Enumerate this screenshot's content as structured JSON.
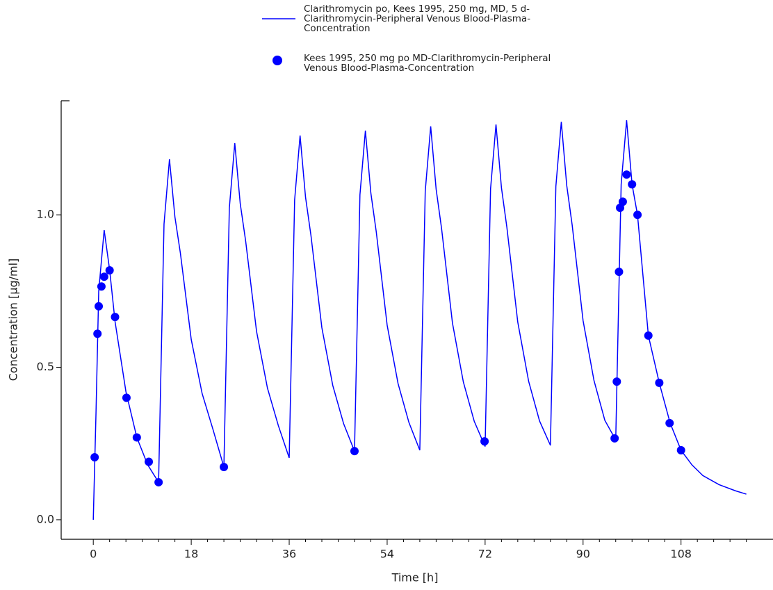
{
  "chart_data": {
    "type": "line",
    "xlabel": "Time [h]",
    "ylabel": "Concentration [µg/ml]",
    "xlim": [
      -5.9,
      124.9
    ],
    "ylim": [
      -0.064,
      1.374
    ],
    "xticks": [
      0,
      18,
      36,
      54,
      72,
      90,
      108
    ],
    "xminorticks": [
      3,
      6,
      9,
      12,
      15,
      21,
      24,
      27,
      30,
      33,
      39,
      42,
      45,
      48,
      51,
      57,
      60,
      63,
      66,
      69,
      75,
      78,
      81,
      84,
      87,
      93,
      96,
      99,
      102,
      105,
      111,
      114,
      117,
      120
    ],
    "yticks": [
      {
        "value": 0,
        "label": "0.0"
      },
      0.5,
      {
        "value": 1,
        "label": "1.0"
      }
    ],
    "series": [
      {
        "name": "Clarithromycin po, Kees 1995, 250 mg, MD, 5 d-Clarithromycin-Peripheral Venous Blood-Plasma-Concentration",
        "color": "#0000ff",
        "type": "line",
        "x": [
          0,
          0.5,
          1,
          2,
          3,
          4,
          6,
          8,
          10,
          12,
          12.5,
          13,
          14,
          15,
          16,
          18,
          20,
          22,
          24,
          24.5,
          25,
          26,
          27,
          28,
          30,
          32,
          34,
          36,
          36.5,
          37,
          38,
          39,
          40,
          42,
          44,
          46,
          48,
          48.5,
          49,
          50,
          51,
          52,
          54,
          56,
          58,
          60,
          60.5,
          61,
          62,
          63,
          64,
          66,
          68,
          70,
          72,
          72.5,
          73,
          74,
          75,
          76,
          78,
          80,
          82,
          84,
          84.5,
          85,
          86,
          87,
          88,
          90,
          92,
          94,
          96,
          96.5,
          97,
          98,
          99,
          100,
          102,
          104,
          106,
          108,
          110,
          112,
          115,
          118,
          120
        ],
        "values": [
          0,
          0.35,
          0.75,
          0.95,
          0.82,
          0.65,
          0.42,
          0.27,
          0.18,
          0.123,
          0.547,
          0.97,
          1.182,
          0.993,
          0.875,
          0.591,
          0.414,
          0.296,
          0.173,
          0.598,
          1.022,
          1.235,
          1.037,
          0.914,
          0.618,
          0.432,
          0.309,
          0.203,
          0.626,
          1.049,
          1.26,
          1.058,
          0.932,
          0.63,
          0.441,
          0.315,
          0.225,
          0.645,
          1.066,
          1.276,
          1.072,
          0.944,
          0.638,
          0.447,
          0.319,
          0.228,
          0.653,
          1.078,
          1.29,
          1.084,
          0.955,
          0.645,
          0.452,
          0.323,
          0.24,
          0.662,
          1.085,
          1.296,
          1.089,
          0.959,
          0.648,
          0.454,
          0.324,
          0.244,
          0.668,
          1.093,
          1.305,
          1.096,
          0.966,
          0.653,
          0.457,
          0.326,
          0.262,
          0.681,
          1.1,
          1.31,
          1.1,
          1.0,
          0.604,
          0.449,
          0.317,
          0.228,
          0.18,
          0.145,
          0.115,
          0.095,
          0.084
        ]
      },
      {
        "name": "Kees 1995, 250 mg po MD-Clarithromycin-Peripheral Venous Blood-Plasma-Concentration",
        "color": "#0000ff",
        "type": "scatter",
        "x": [
          0.25,
          0.77,
          1.0,
          1.5,
          2.0,
          3.0,
          4.0,
          6.1,
          8.0,
          10.2,
          12.0,
          24.0,
          48.0,
          71.9,
          95.8,
          96.2,
          96.6,
          96.8,
          97.3,
          98.0,
          99.0,
          100.0,
          102.0,
          104.0,
          105.9,
          108.0
        ],
        "values": [
          0.205,
          0.61,
          0.7,
          0.765,
          0.797,
          0.818,
          0.665,
          0.4,
          0.27,
          0.19,
          0.123,
          0.173,
          0.225,
          0.257,
          0.267,
          0.453,
          0.813,
          1.023,
          1.043,
          1.132,
          1.1,
          1.0,
          0.604,
          0.449,
          0.317,
          0.228
        ]
      }
    ]
  }
}
